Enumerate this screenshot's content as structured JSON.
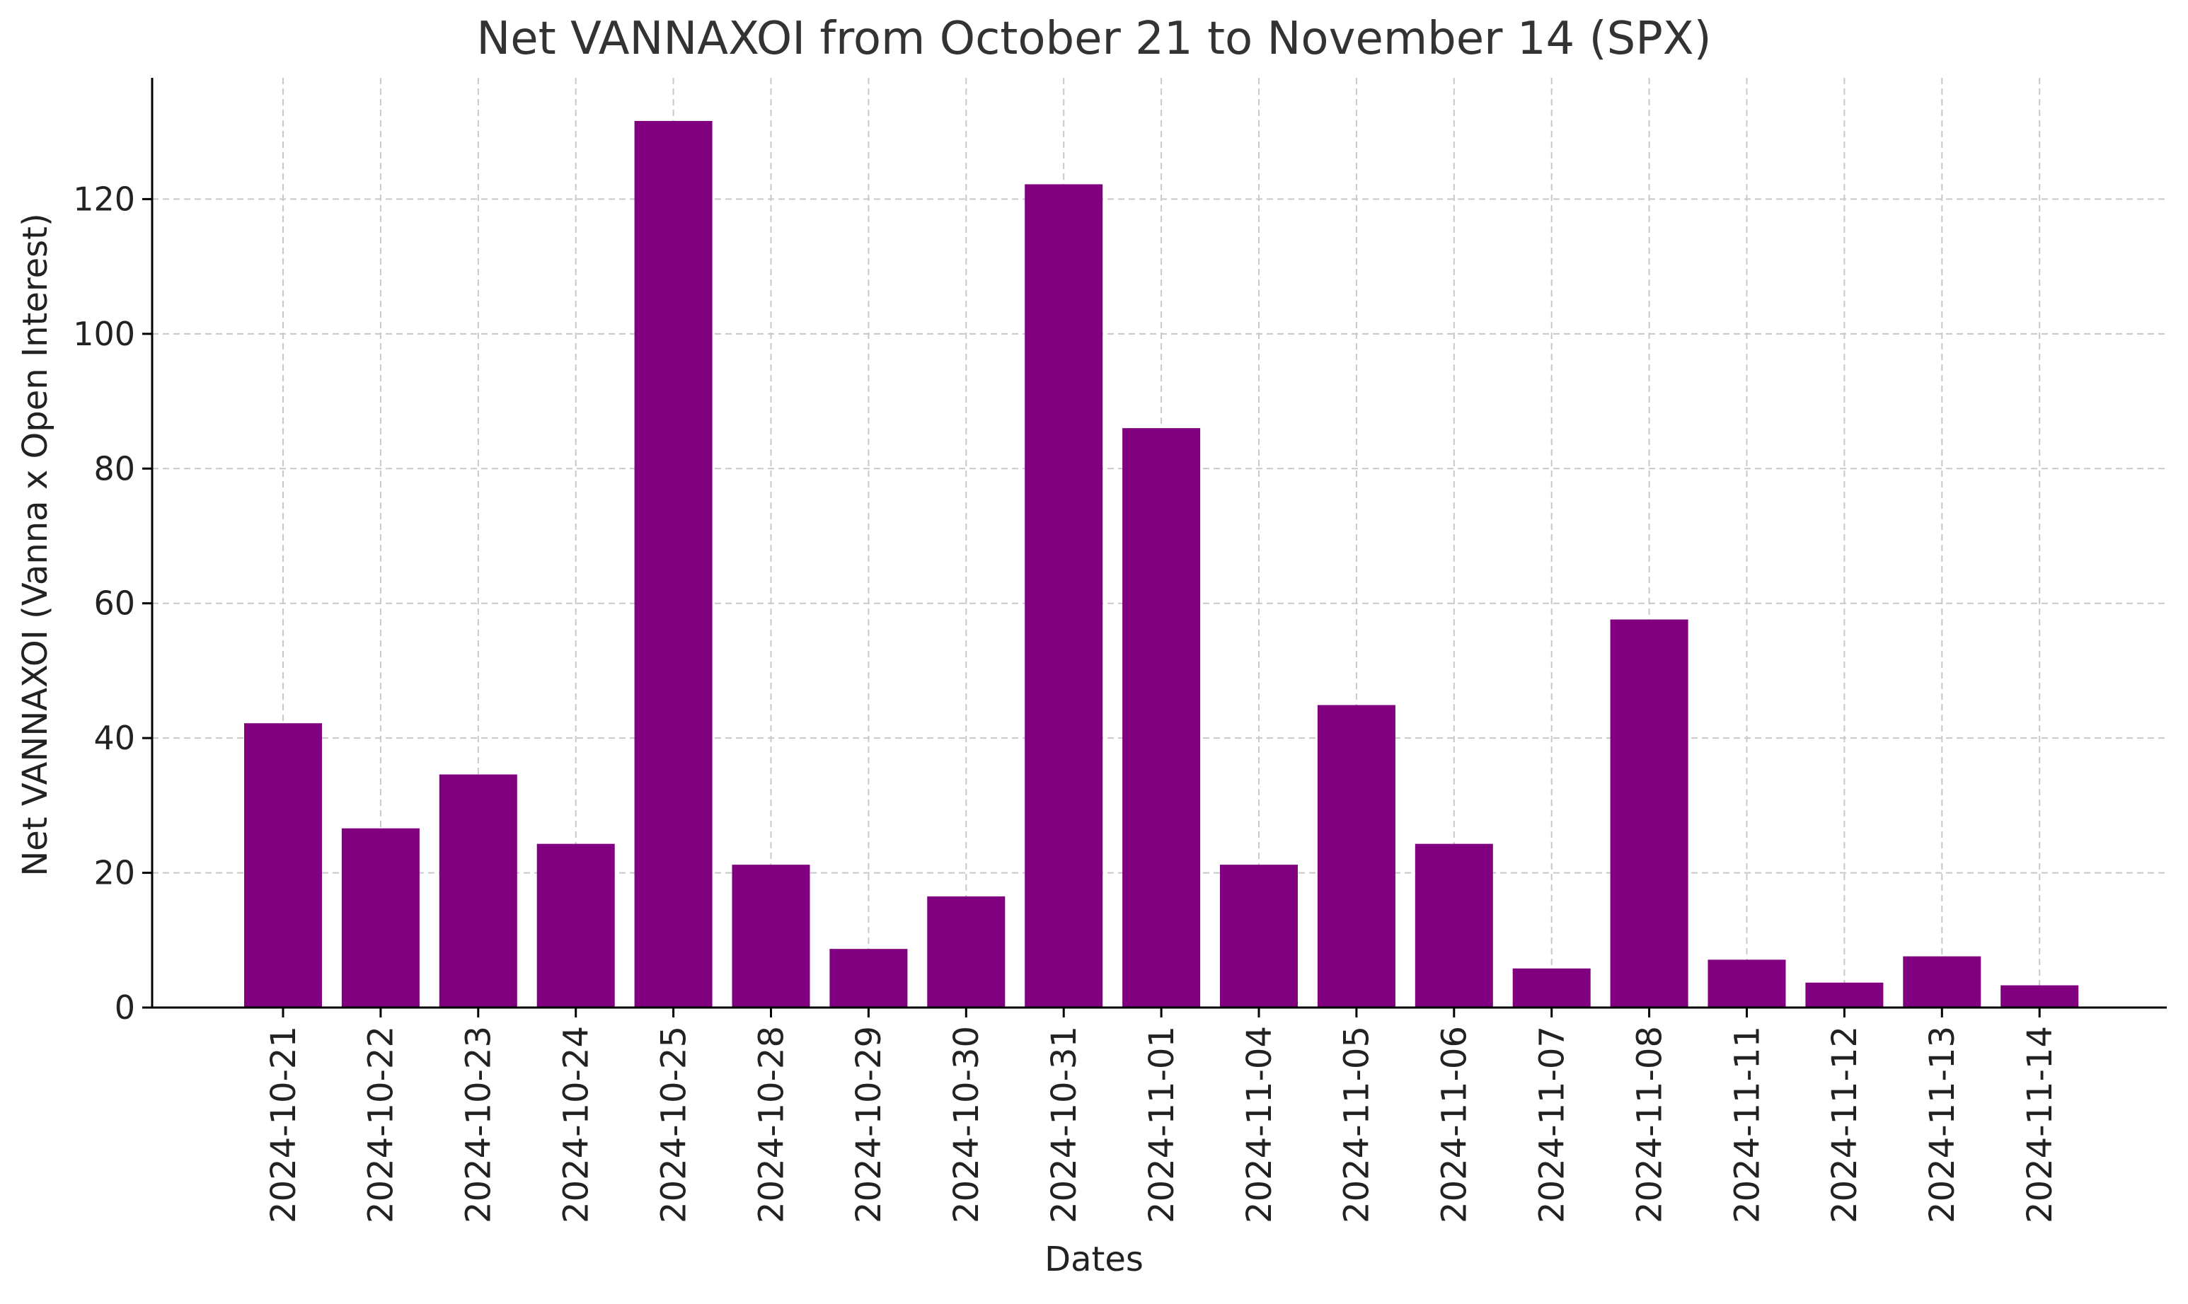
{
  "chart_data": {
    "type": "bar",
    "title": "Net VANNAXOI from October 21 to November 14 (SPX)",
    "xlabel": "Dates",
    "ylabel": "Net VANNAXOI (Vanna x Open Interest)",
    "categories": [
      "2024-10-21",
      "2024-10-22",
      "2024-10-23",
      "2024-10-24",
      "2024-10-25",
      "2024-10-28",
      "2024-10-29",
      "2024-10-30",
      "2024-10-31",
      "2024-11-01",
      "2024-11-04",
      "2024-11-05",
      "2024-11-06",
      "2024-11-07",
      "2024-11-08",
      "2024-11-11",
      "2024-11-12",
      "2024-11-13",
      "2024-11-14"
    ],
    "values": [
      42.2,
      26.6,
      34.6,
      24.3,
      131.6,
      21.2,
      8.7,
      16.5,
      122.2,
      86.0,
      21.2,
      44.9,
      24.3,
      5.8,
      57.6,
      7.1,
      3.7,
      7.6,
      3.3
    ],
    "ylim": [
      0,
      138
    ],
    "yticks": [
      0,
      20,
      40,
      60,
      80,
      100,
      120
    ],
    "grid": true,
    "bar_color": "#800080"
  }
}
